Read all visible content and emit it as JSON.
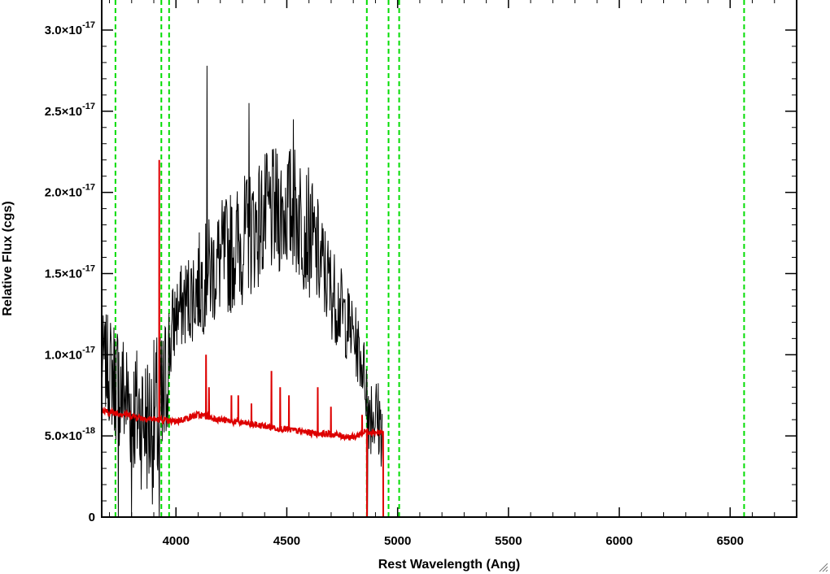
{
  "chart_data": {
    "type": "line",
    "title": "",
    "xlabel": "Rest Wavelength (Ang)",
    "ylabel": "Relative Flux (cgs)",
    "xlim": [
      3665,
      6800
    ],
    "ylim": [
      0,
      3.1e-17
    ],
    "x_ticks": [
      {
        "value": 4000,
        "label": "4000"
      },
      {
        "value": 4500,
        "label": "4500"
      },
      {
        "value": 5000,
        "label": "5000"
      },
      {
        "value": 5500,
        "label": "5500"
      },
      {
        "value": 6000,
        "label": "6000"
      },
      {
        "value": 6500,
        "label": "6500"
      }
    ],
    "y_ticks": [
      {
        "value": 0,
        "mantissa": "0",
        "exponent": ""
      },
      {
        "value": 5e-18,
        "mantissa": "5.0×10",
        "exponent": "-18"
      },
      {
        "value": 1e-17,
        "mantissa": "1.0×10",
        "exponent": "-17"
      },
      {
        "value": 1.5e-17,
        "mantissa": "1.5×10",
        "exponent": "-17"
      },
      {
        "value": 2e-17,
        "mantissa": "2.0×10",
        "exponent": "-17"
      },
      {
        "value": 2.5e-17,
        "mantissa": "2.5×10",
        "exponent": "-17"
      },
      {
        "value": 3e-17,
        "mantissa": "3.0×10",
        "exponent": "-17"
      }
    ],
    "vlines": {
      "color": "#00dd00",
      "style": "dashed",
      "x": [
        3727,
        3934,
        3969,
        4861,
        4959,
        5007,
        6563
      ]
    },
    "series": [
      {
        "color": "#000000",
        "envelope": {
          "x": [
            3665,
            3730,
            3800,
            3880,
            3940,
            3970,
            4000,
            4100,
            4200,
            4300,
            4400,
            4500,
            4550,
            4600,
            4700,
            4800,
            4850,
            4870,
            4930
          ],
          "low": [
            7e-18,
            4.5e-18,
            2.5e-18,
            1e-18,
            0,
            7e-18,
            1e-17,
            1.1e-17,
            1.2e-17,
            1.3e-17,
            1.45e-17,
            1.5e-17,
            1.45e-17,
            1.35e-17,
            1.1e-17,
            9e-18,
            7e-18,
            4e-18,
            3e-18
          ],
          "high": [
            1.25e-17,
            1.25e-17,
            1.1e-17,
            1.05e-17,
            1.2e-17,
            1.4e-17,
            1.5e-17,
            1.75e-17,
            1.95e-17,
            2.1e-17,
            2.25e-17,
            2.3e-17,
            2.3e-17,
            2.15e-17,
            1.7e-17,
            1.35e-17,
            1.1e-17,
            1e-17,
            8e-18
          ]
        },
        "spikes": [
          [
            4140,
            2.78e-17
          ],
          [
            4330,
            2.55e-17
          ],
          [
            4530,
            2.45e-17
          ],
          [
            3800,
            0
          ],
          [
            3740,
            0
          ],
          [
            3925,
            0
          ],
          [
            4865,
            0
          ]
        ],
        "x_end": 4930
      },
      {
        "color": "#dd0000",
        "baseline": {
          "x": [
            3665,
            3750,
            3850,
            3930,
            3965,
            4000,
            4100,
            4200,
            4300,
            4400,
            4500,
            4600,
            4700,
            4800,
            4860,
            4920,
            4935
          ],
          "y": [
            6.5e-18,
            6.4e-18,
            6.1e-18,
            6e-18,
            5.9e-18,
            5.9e-18,
            6.3e-18,
            6e-18,
            5.8e-18,
            5.6e-18,
            5.4e-18,
            5.2e-18,
            5.1e-18,
            4.9e-18,
            5.3e-18,
            5.2e-18,
            5.2e-18
          ]
        },
        "spikes": [
          [
            3925,
            2.2e-17
          ],
          [
            4135,
            1e-17
          ],
          [
            4150,
            8e-18
          ],
          [
            4250,
            7.5e-18
          ],
          [
            4280,
            7.5e-18
          ],
          [
            4340,
            7e-18
          ],
          [
            4430,
            9e-18
          ],
          [
            4470,
            8e-18
          ],
          [
            4510,
            7.5e-18
          ],
          [
            4640,
            8e-18
          ],
          [
            4700,
            6.8e-18
          ],
          [
            4840,
            6.3e-18
          ],
          [
            4862,
            0
          ]
        ],
        "x_drop": 4935,
        "tail_value": 0,
        "x_end": 6800
      }
    ]
  }
}
